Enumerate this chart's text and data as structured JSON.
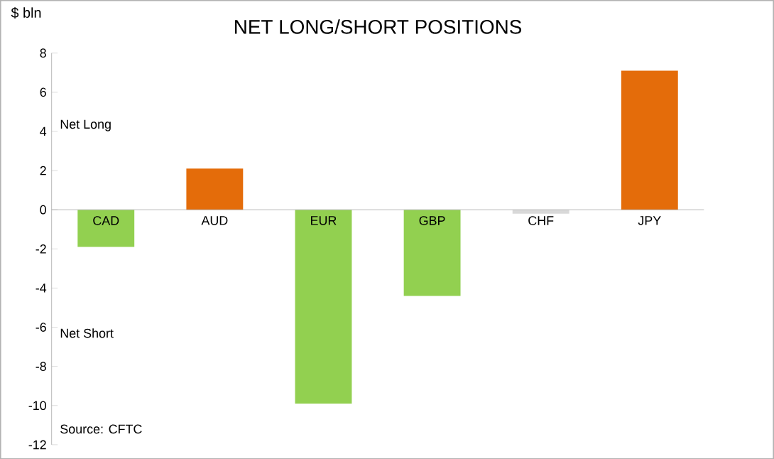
{
  "chart_data": {
    "type": "bar",
    "title": "NET LONG/SHORT POSITIONS",
    "ylabel": "$ bln",
    "categories": [
      "CAD",
      "AUD",
      "EUR",
      "GBP",
      "CHF",
      "JPY"
    ],
    "values": [
      -1.9,
      2.1,
      -9.9,
      -4.4,
      -0.2,
      7.1
    ],
    "colors": [
      "#92d050",
      "#e46c0a",
      "#92d050",
      "#92d050",
      "#d9d9d9",
      "#e46c0a"
    ],
    "ylim": [
      -12,
      8
    ],
    "yticks": [
      -12,
      -10,
      -8,
      -6,
      -4,
      -2,
      0,
      2,
      4,
      6,
      8
    ],
    "annotations": [
      "Net Long",
      "Net Short",
      "Source: CFTC"
    ],
    "grid": false
  }
}
